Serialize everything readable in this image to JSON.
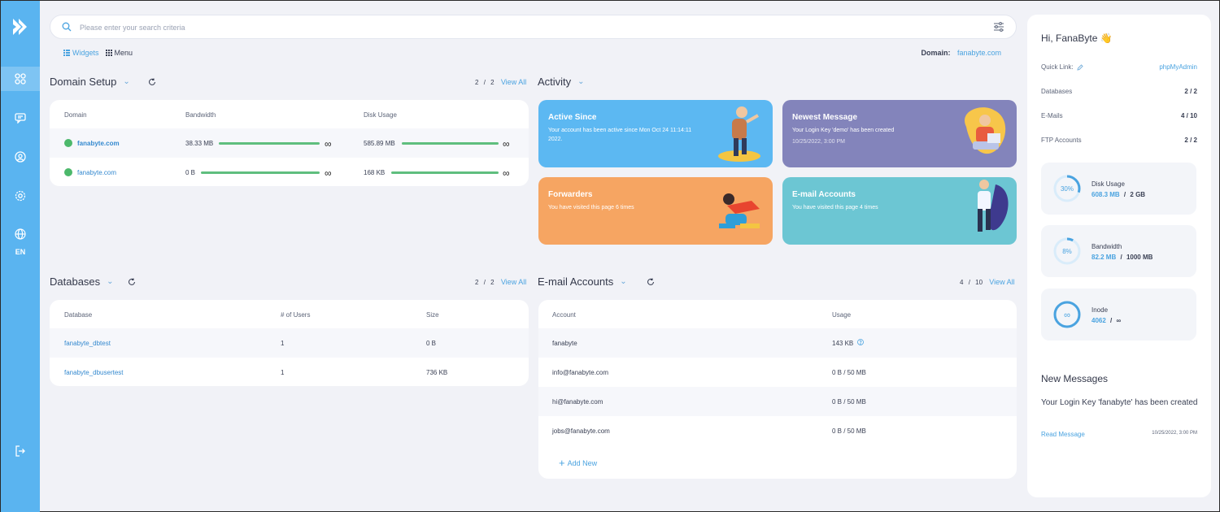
{
  "search": {
    "placeholder": "Please enter your search criteria"
  },
  "view_tabs": [
    {
      "label": "Widgets",
      "icon": "list-icon",
      "active": true
    },
    {
      "label": "Menu",
      "icon": "grid-icon",
      "active": false
    }
  ],
  "domain_info": {
    "label": "Domain:",
    "value": "fanabyte.com"
  },
  "sidebar": {
    "language": "EN",
    "items": [
      "dashboard-icon",
      "chat-icon",
      "user-circle-icon",
      "settings-icon",
      "globe-icon",
      "logout-icon"
    ]
  },
  "domain_setup": {
    "title": "Domain Setup",
    "pager": {
      "current": "2",
      "sep": "/",
      "total": "2",
      "view_all": "View All"
    },
    "headers": [
      "Domain",
      "Bandwidth",
      "Disk Usage"
    ],
    "rows": [
      {
        "domain": "fanabyte.com",
        "bandwidth": "38.33 MB",
        "disk": "585.89 MB",
        "bw_limit": "∞",
        "disk_limit": "∞"
      },
      {
        "domain": "fanabyte.com",
        "bandwidth": "0 B",
        "disk": "168 KB",
        "bw_limit": "∞",
        "disk_limit": "∞"
      }
    ]
  },
  "activity": {
    "title": "Activity",
    "tiles": [
      {
        "title": "Active Since",
        "desc": "Your account has been active since Mon Oct 24 11:14:11 2022.",
        "date": "",
        "color": "#5cb8f2"
      },
      {
        "title": "Newest Message",
        "desc": "Your Login Key 'demo' has been created",
        "date": "10/25/2022, 3:00 PM",
        "color": "#8384bb"
      },
      {
        "title": "Forwarders",
        "desc": "You have visited this page 6 times",
        "date": "",
        "color": "#f6a562"
      },
      {
        "title": "E-mail Accounts",
        "desc": "You have visited this page 4 times",
        "date": "",
        "color": "#6cc6d3"
      }
    ]
  },
  "databases": {
    "title": "Databases",
    "pager": {
      "current": "2",
      "sep": "/",
      "total": "2",
      "view_all": "View All"
    },
    "headers": [
      "Database",
      "# of Users",
      "Size"
    ],
    "rows": [
      {
        "name": "fanabyte_dbtest",
        "users": "1",
        "size": "0 B"
      },
      {
        "name": "fanabyte_dbusertest",
        "users": "1",
        "size": "736 KB"
      }
    ]
  },
  "email_accounts": {
    "title": "E-mail Accounts",
    "pager": {
      "current": "4",
      "sep": "/",
      "total": "10",
      "view_all": "View All"
    },
    "headers": [
      "Account",
      "Usage"
    ],
    "rows": [
      {
        "account": "fanabyte",
        "usage": "143 KB"
      },
      {
        "account": "info@fanabyte.com",
        "usage": "0 B / 50 MB"
      },
      {
        "account": "hi@fanabyte.com",
        "usage": "0 B / 50 MB"
      },
      {
        "account": "jobs@fanabyte.com",
        "usage": "0 B / 50 MB"
      }
    ],
    "add_new": "Add New"
  },
  "right_panel": {
    "greeting": "Hi, FanaByte",
    "greeting_emoji": "👋",
    "quick_link_label": "Quick Link:",
    "quick_link_value": "phpMyAdmin",
    "stats": [
      {
        "label": "Databases",
        "value": "2 / 2"
      },
      {
        "label": "E-Mails",
        "value": "4 / 10"
      },
      {
        "label": "FTP Accounts",
        "value": "2 / 2"
      }
    ],
    "usage": [
      {
        "name": "Disk Usage",
        "used": "608.3 MB",
        "sep": "/",
        "limit": "2 GB",
        "ring_text": "30%",
        "percent": 30
      },
      {
        "name": "Bandwidth",
        "used": "82.2 MB",
        "sep": "/",
        "limit": "1000 MB",
        "ring_text": "8%",
        "percent": 8
      },
      {
        "name": "Inode",
        "used": "4062",
        "sep": "/",
        "limit": "∞",
        "ring_text": "∞",
        "percent": 100
      }
    ],
    "new_messages": {
      "title": "New Messages",
      "body": "Your Login Key 'fanabyte' has been created",
      "read": "Read Message",
      "date": "10/25/2022, 3:00 PM"
    }
  }
}
